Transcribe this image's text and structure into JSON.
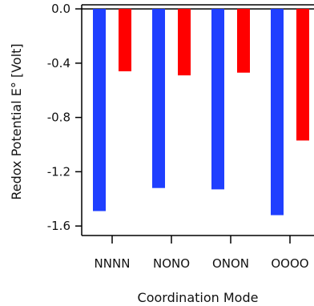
{
  "chart_data": {
    "type": "bar",
    "title": "",
    "xlabel": "Coordination Mode",
    "ylabel": "Redox Potential E° [Volt]",
    "categories": [
      "NNNN",
      "NONO",
      "ONON",
      "OOOO"
    ],
    "series": [
      {
        "color": "#1f3fff",
        "values": [
          -1.49,
          -1.32,
          -1.33,
          -1.52
        ]
      },
      {
        "color": "#ff0000",
        "values": [
          -0.46,
          -0.49,
          -0.47,
          -0.97
        ]
      }
    ],
    "ylim": [
      -1.67,
      0.03
    ],
    "yticks": [
      0.0,
      -0.4,
      -0.8,
      -1.2,
      -1.6
    ],
    "ytick_labels": [
      "0.0",
      "-0.4",
      "-0.8",
      "-1.2",
      "-1.6"
    ],
    "legend": "none",
    "grid": false
  }
}
